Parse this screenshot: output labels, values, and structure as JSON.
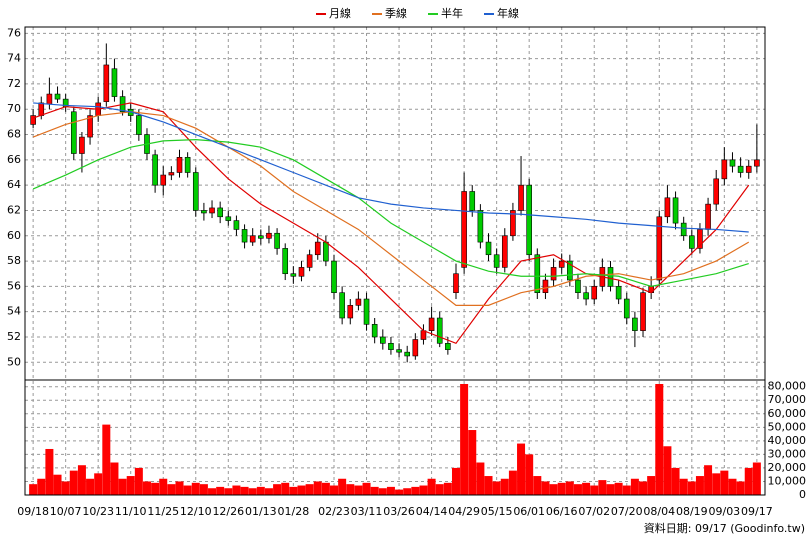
{
  "chart_data": {
    "type": "candlestick",
    "series": [
      {
        "name": "月線",
        "color": "#e00000",
        "values": [
          69.3,
          70.2,
          70.0,
          70.5,
          69.8,
          67.0,
          64.5,
          62.5,
          61.0,
          59.5,
          57.5,
          55.0,
          52.5,
          51.5,
          55.0,
          58.0,
          58.5,
          57.0,
          56.5,
          55.5,
          58.0,
          60.5,
          64.0
        ]
      },
      {
        "name": "季線",
        "color": "#e07020",
        "values": [
          67.8,
          68.8,
          69.5,
          69.8,
          69.5,
          68.5,
          67.0,
          65.5,
          63.5,
          62.0,
          60.5,
          58.5,
          56.5,
          54.5,
          54.5,
          55.5,
          56.0,
          56.8,
          57.0,
          56.5,
          57.0,
          58.0,
          59.5
        ]
      },
      {
        "name": "半年",
        "color": "#22cc22",
        "values": [
          63.7,
          64.8,
          66.0,
          67.0,
          67.5,
          67.6,
          67.4,
          67.0,
          66.0,
          64.5,
          63.0,
          61.0,
          59.5,
          58.0,
          57.2,
          56.8,
          56.8,
          57.0,
          56.8,
          56.0,
          56.5,
          57.0,
          57.8
        ]
      },
      {
        "name": "年線",
        "color": "#2060d0",
        "values": [
          70.5,
          70.3,
          70.2,
          69.8,
          69.0,
          68.0,
          67.0,
          66.0,
          65.0,
          64.0,
          63.0,
          62.5,
          62.2,
          62.0,
          61.8,
          61.7,
          61.5,
          61.3,
          61.0,
          60.8,
          60.6,
          60.5,
          60.3
        ]
      }
    ],
    "ma_x": [
      0,
      4,
      8,
      12,
      16,
      20,
      24,
      28,
      32,
      36,
      40,
      44,
      48,
      52,
      56,
      60,
      64,
      68,
      72,
      76,
      80,
      84,
      88
    ],
    "candles": {
      "up_color": "#ff0000",
      "down_color": "#00cc00",
      "open": [
        68.8,
        69.5,
        70.4,
        71.2,
        70.8,
        69.8,
        66.5,
        67.8,
        69.5,
        70.6,
        73.2,
        71.0,
        70.0,
        69.5,
        68.0,
        66.4,
        64.0,
        64.8,
        65.0,
        66.2,
        65.0,
        62.0,
        61.8,
        62.2,
        61.5,
        61.2,
        60.5,
        59.5,
        60.0,
        59.8,
        60.2,
        59.0,
        57.0,
        56.8,
        57.5,
        58.5,
        59.5,
        58.0,
        55.5,
        53.5,
        54.5,
        55.0,
        53.0,
        52.0,
        51.5,
        51.0,
        50.8,
        50.5,
        51.8,
        52.5,
        53.5,
        51.5,
        55.5,
        57.5,
        63.5,
        62.0,
        59.5,
        58.5,
        57.5,
        60.0,
        62.0,
        64.0,
        58.5,
        55.5,
        56.5,
        57.5,
        58.0,
        56.5,
        55.5,
        55.0,
        56.0,
        57.5,
        56.0,
        55.0,
        53.5,
        52.5,
        55.5,
        56.5,
        61.5,
        63.0,
        61.0,
        60.0,
        59.0,
        60.5,
        62.5,
        64.5,
        66.0,
        65.5,
        65.0,
        65.5
      ],
      "high": [
        70.0,
        71.0,
        72.5,
        71.8,
        71.2,
        70.2,
        68.2,
        70.0,
        71.0,
        75.2,
        74.0,
        71.5,
        70.5,
        70.0,
        68.5,
        66.8,
        65.5,
        65.5,
        66.8,
        66.6,
        65.4,
        62.6,
        62.8,
        62.7,
        62.0,
        61.6,
        60.9,
        60.6,
        60.5,
        60.8,
        60.6,
        59.4,
        57.6,
        58.0,
        58.9,
        60.2,
        60.0,
        58.5,
        56.0,
        55.0,
        55.6,
        55.5,
        53.5,
        52.6,
        52.0,
        51.5,
        51.3,
        52.3,
        53.0,
        54.4,
        54.0,
        52.0,
        57.8,
        65.0,
        64.0,
        62.5,
        60.2,
        59.0,
        60.6,
        62.6,
        66.3,
        64.5,
        59.0,
        57.0,
        58.2,
        58.6,
        58.5,
        57.0,
        56.0,
        56.5,
        58.2,
        58.0,
        56.5,
        55.5,
        54.0,
        55.9,
        56.8,
        62.0,
        64.0,
        63.5,
        61.5,
        60.5,
        61.0,
        63.0,
        65.2,
        67.0,
        66.6,
        66.2,
        66.0,
        68.8
      ],
      "low": [
        68.5,
        69.2,
        70.0,
        70.5,
        69.8,
        66.0,
        65.0,
        67.2,
        69.0,
        70.2,
        70.6,
        69.5,
        69.0,
        67.5,
        66.0,
        63.4,
        63.2,
        64.4,
        64.6,
        64.6,
        61.5,
        61.2,
        61.4,
        61.0,
        60.8,
        60.0,
        59.0,
        59.2,
        59.3,
        59.4,
        58.5,
        56.5,
        56.2,
        56.4,
        57.2,
        58.1,
        57.6,
        55.0,
        53.0,
        53.0,
        54.1,
        52.5,
        51.5,
        51.0,
        50.6,
        50.4,
        50.0,
        50.2,
        51.4,
        52.1,
        51.2,
        50.6,
        55.0,
        57.0,
        61.5,
        59.0,
        58.0,
        57.0,
        57.1,
        59.6,
        61.6,
        58.0,
        55.0,
        55.0,
        56.0,
        57.0,
        56.0,
        55.0,
        54.5,
        54.6,
        55.6,
        55.6,
        54.6,
        53.0,
        51.2,
        52.0,
        55.0,
        56.0,
        61.0,
        60.5,
        59.6,
        58.5,
        58.6,
        60.0,
        62.0,
        64.0,
        65.0,
        64.6,
        64.5,
        65.0
      ],
      "close": [
        69.5,
        70.5,
        71.2,
        70.8,
        70.2,
        66.5,
        67.8,
        69.5,
        70.5,
        73.5,
        71.0,
        69.8,
        69.5,
        68.0,
        66.5,
        64.0,
        64.8,
        65.0,
        66.2,
        65.0,
        62.0,
        61.8,
        62.2,
        61.5,
        61.2,
        60.5,
        59.5,
        60.0,
        59.8,
        60.2,
        59.0,
        57.0,
        56.8,
        57.5,
        58.5,
        59.5,
        58.0,
        55.5,
        53.5,
        54.5,
        55.0,
        53.0,
        52.0,
        51.5,
        51.0,
        50.8,
        50.5,
        51.8,
        52.5,
        53.5,
        51.5,
        51.0,
        57.0,
        63.5,
        62.0,
        59.5,
        58.5,
        57.5,
        60.0,
        62.0,
        64.0,
        58.5,
        55.5,
        56.5,
        57.5,
        58.0,
        56.5,
        55.5,
        55.0,
        56.0,
        57.5,
        56.0,
        55.0,
        53.5,
        52.5,
        55.5,
        56.0,
        61.5,
        63.0,
        61.0,
        60.0,
        59.0,
        60.5,
        62.5,
        64.5,
        66.0,
        65.5,
        65.0,
        65.5,
        66.0
      ]
    },
    "volume": {
      "color": "#ff0000",
      "values": [
        8000,
        12000,
        34000,
        15000,
        10000,
        18000,
        22000,
        12000,
        16000,
        52000,
        24000,
        12000,
        14000,
        20000,
        10000,
        9000,
        12000,
        8000,
        10000,
        7000,
        9000,
        8000,
        5000,
        6000,
        5000,
        7000,
        6000,
        5000,
        6000,
        5000,
        8000,
        9000,
        6000,
        7000,
        8000,
        10000,
        9000,
        7000,
        12000,
        8000,
        7000,
        9000,
        6000,
        5000,
        6000,
        4000,
        5000,
        6000,
        7000,
        12000,
        8000,
        9000,
        20000,
        82000,
        48000,
        24000,
        14000,
        10000,
        12000,
        18000,
        38000,
        30000,
        14000,
        10000,
        8000,
        9000,
        10000,
        8000,
        9000,
        7000,
        11000,
        8000,
        9000,
        7000,
        12000,
        10000,
        14000,
        82000,
        36000,
        20000,
        12000,
        10000,
        14000,
        22000,
        16000,
        18000,
        12000,
        10000,
        20000,
        24000
      ],
      "ylim": [
        0,
        82000
      ],
      "yticks": [
        0,
        {
          "value": 10000,
          "label": "10,000"
        },
        {
          "value": 20000,
          "label": "20,000"
        },
        {
          "value": 30000,
          "label": "30,000"
        },
        {
          "value": 40000,
          "label": "40,000"
        },
        {
          "value": 50000,
          "label": "50,000"
        },
        {
          "value": 60000,
          "label": "60,000"
        },
        {
          "value": 70000,
          "label": "70,000"
        },
        {
          "value": 80000,
          "label": "80,000"
        }
      ]
    },
    "ylim": [
      48.6,
      76.5
    ],
    "yticks": [
      50,
      52,
      54,
      56,
      58,
      60,
      62,
      64,
      66,
      68,
      70,
      72,
      74,
      76
    ],
    "xlim": [
      -1,
      90
    ],
    "xticks": [
      {
        "value": 0,
        "label": "09/18"
      },
      {
        "value": 4,
        "label": "10/07"
      },
      {
        "value": 8,
        "label": "10/23"
      },
      {
        "value": 12,
        "label": "11/10"
      },
      {
        "value": 16,
        "label": "11/25"
      },
      {
        "value": 20,
        "label": "12/10"
      },
      {
        "value": 24,
        "label": "12/26"
      },
      {
        "value": 28,
        "label": "01/13"
      },
      {
        "value": 32,
        "label": "01/28"
      },
      {
        "value": 37,
        "label": "02/23"
      },
      {
        "value": 41,
        "label": "03/11"
      },
      {
        "value": 45,
        "label": "03/26"
      },
      {
        "value": 49,
        "label": "04/14"
      },
      {
        "value": 53,
        "label": "04/29"
      },
      {
        "value": 57,
        "label": "05/15"
      },
      {
        "value": 61,
        "label": "06/01"
      },
      {
        "value": 65,
        "label": "06/16"
      },
      {
        "value": 69,
        "label": "07/02"
      },
      {
        "value": 73,
        "label": "07/20"
      },
      {
        "value": 77,
        "label": "08/04"
      },
      {
        "value": 81,
        "label": "08/19"
      },
      {
        "value": 85,
        "label": "09/03"
      },
      {
        "value": 89,
        "label": "09/17"
      }
    ],
    "grid": true,
    "footer": "資料日期: 09/17  (Goodinfo.tw)"
  }
}
